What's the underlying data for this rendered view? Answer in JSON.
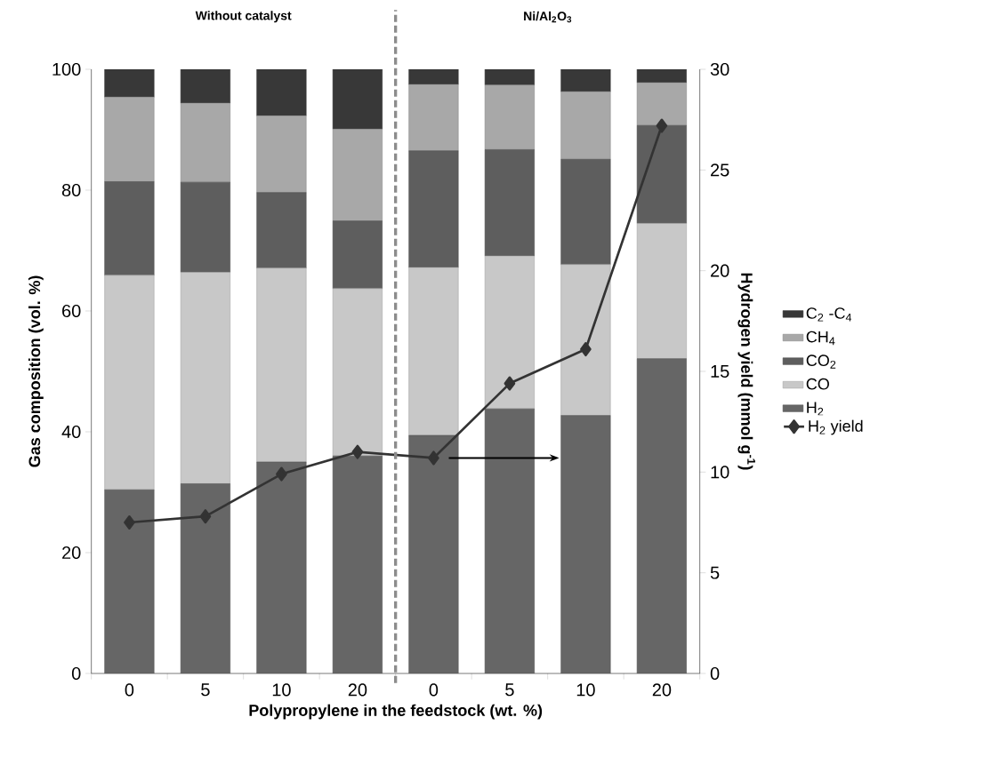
{
  "chart_data": {
    "type": "bar",
    "stacked": true,
    "xlabel": "Polypropylene in the feedstock (wt. %)",
    "ylabel": "Gas composition (vol. %)",
    "y2label": "Hydrogen yield (mmol g$^{-1}$)",
    "annotations": [
      "Without catalyst",
      "Ni/Al$_{2}$O$_{3}$"
    ],
    "categories": [
      "0",
      "5",
      "10",
      "20",
      "0",
      "5",
      "10",
      "20"
    ],
    "ylim": [
      0,
      100
    ],
    "yticks": [
      0,
      20,
      40,
      60,
      80,
      100
    ],
    "y2lim": [
      0,
      30
    ],
    "y2ticks": [
      0,
      5,
      10,
      15,
      20,
      25,
      30
    ],
    "legend": "right",
    "grid": false,
    "series": [
      {
        "name": "H$_{2}$",
        "color": "#666666",
        "values": [
          30.4,
          31.4,
          35.0,
          36.0,
          39.4,
          43.8,
          42.7,
          52.1
        ]
      },
      {
        "name": "CO",
        "color": "#c8c8c8",
        "values": [
          35.5,
          35.0,
          32.1,
          27.7,
          27.8,
          25.3,
          25.0,
          22.4
        ]
      },
      {
        "name": "CO$_{2}$",
        "color": "#5e5e5e",
        "values": [
          15.5,
          14.9,
          12.5,
          11.2,
          19.3,
          17.6,
          17.4,
          16.2
        ]
      },
      {
        "name": "CH$_{4}$",
        "color": "#a8a8a8",
        "values": [
          14.0,
          13.1,
          12.7,
          15.2,
          11.0,
          10.7,
          11.2,
          7.1
        ]
      },
      {
        "name": "C$_{2}$ -C$_{4}$",
        "color": "#383838",
        "values": [
          4.6,
          5.6,
          7.7,
          9.9,
          2.5,
          2.6,
          3.7,
          2.2
        ]
      },
      {
        "name": "H$_{2}$  yield",
        "type": "line",
        "axis": "y2",
        "marker": "diamond",
        "line_style": "solid",
        "color": "#333333",
        "values": [
          7.5,
          7.8,
          9.9,
          11.0,
          10.7,
          14.4,
          16.1,
          27.2
        ]
      }
    ]
  }
}
